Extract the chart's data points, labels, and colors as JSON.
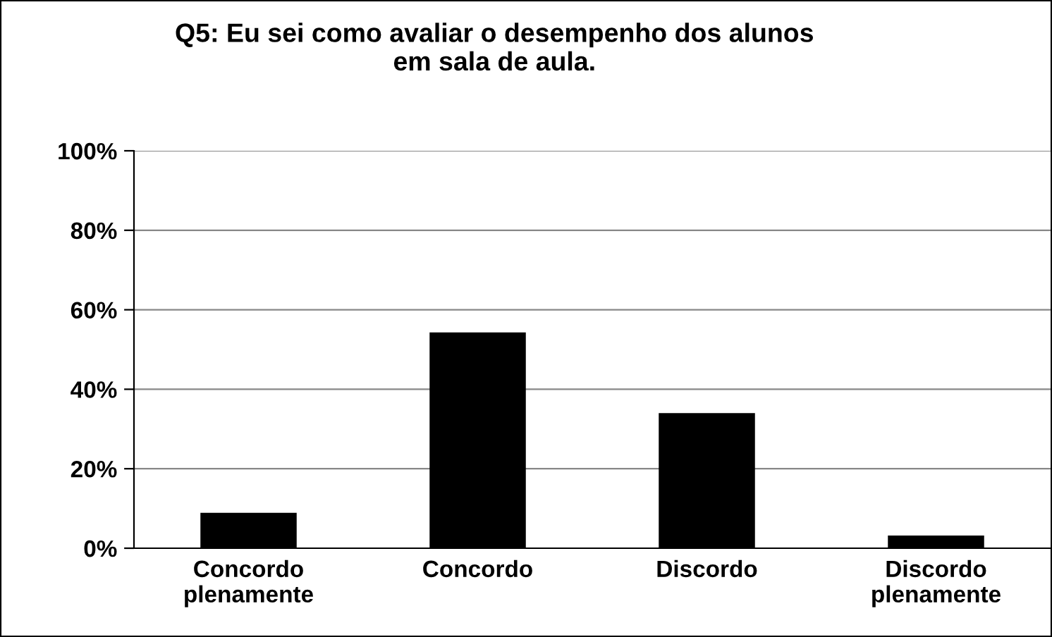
{
  "chart_data": {
    "type": "bar",
    "title": "Q5: Eu sei como avaliar o desempenho dos alunos\nem sala de aula.",
    "categories": [
      "Concordo\nplenamente",
      "Concordo",
      "Discordo",
      "Discordo\nplenamente"
    ],
    "values": [
      8.9,
      54.3,
      34.0,
      3.2
    ],
    "color": "#000000",
    "ylim": [
      0,
      100
    ],
    "yticks": [
      {
        "value": 0,
        "label": "0%"
      },
      {
        "value": 20,
        "label": "20%"
      },
      {
        "value": 40,
        "label": "40%"
      },
      {
        "value": 60,
        "label": "60%"
      },
      {
        "value": 80,
        "label": "80%"
      },
      {
        "value": 100,
        "label": "100%"
      }
    ],
    "grid": "y",
    "legend": false
  }
}
